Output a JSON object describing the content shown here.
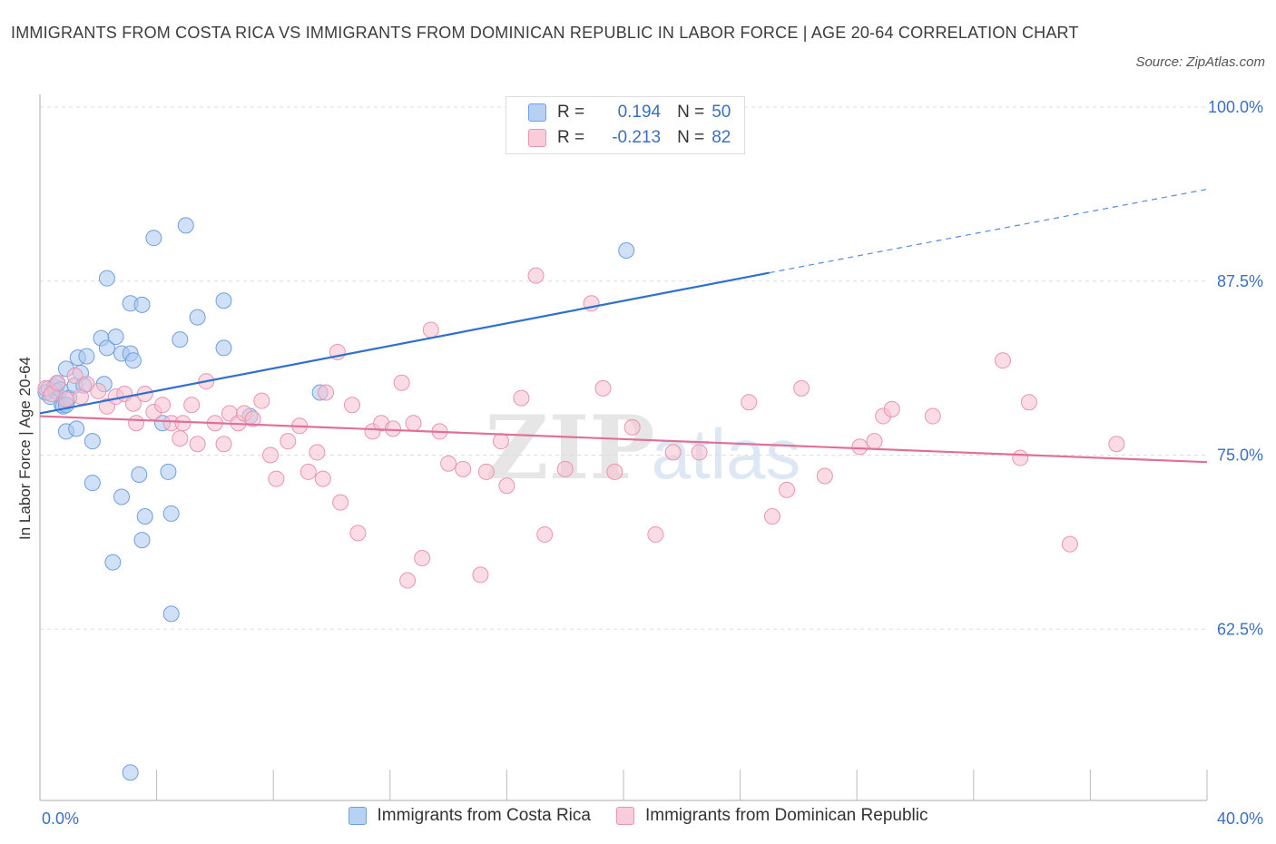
{
  "title": "IMMIGRANTS FROM COSTA RICA VS IMMIGRANTS FROM DOMINICAN REPUBLIC IN LABOR FORCE | AGE 20-64 CORRELATION CHART",
  "source": "Source: ZipAtlas.com",
  "watermark": {
    "zip": "ZIP",
    "atlas": "atlas"
  },
  "legend": {
    "rows": [
      {
        "r_label": "R =",
        "r_value": "0.194",
        "n_label": "N =",
        "n_value": "50"
      },
      {
        "r_label": "R =",
        "r_value": "-0.213",
        "n_label": "N =",
        "n_value": "82"
      }
    ]
  },
  "colors": {
    "blue_fill": "#a9c8f0",
    "blue_stroke": "#6f9fde",
    "blue_line": "#2f6fcf",
    "pink_fill": "#f7c0d0",
    "pink_stroke": "#e895b0",
    "pink_line": "#e0709a",
    "axis_text": "#3a6fc5",
    "grid": "#dddddd"
  },
  "chart_data": {
    "type": "scatter",
    "title": "IMMIGRANTS FROM COSTA RICA VS IMMIGRANTS FROM DOMINICAN REPUBLIC IN LABOR FORCE | AGE 20-64 CORRELATION CHART",
    "xlabel": "",
    "ylabel": "In Labor Force | Age 20-64",
    "xlim": [
      0,
      40
    ],
    "ylim": [
      50,
      100
    ],
    "x_tick_labels": [
      "0.0%",
      "40.0%"
    ],
    "y_ticks": [
      62.5,
      75.0,
      87.5,
      100.0
    ],
    "y_tick_labels": [
      "62.5%",
      "75.0%",
      "87.5%",
      "100.0%"
    ],
    "grid": true,
    "legend_position": "top-center",
    "series": [
      {
        "name": "Immigrants from Costa Rica",
        "r": 0.194,
        "n": 50,
        "trend": {
          "x": [
            0,
            25
          ],
          "y": [
            78.0,
            88.1
          ],
          "dashed_to": [
            40,
            94.1
          ]
        },
        "points": [
          [
            0.2,
            79.5
          ],
          [
            0.3,
            79.8
          ],
          [
            0.35,
            79.2
          ],
          [
            0.5,
            79.9
          ],
          [
            0.55,
            79.6
          ],
          [
            0.6,
            80.1
          ],
          [
            0.7,
            79.7
          ],
          [
            0.75,
            78.6
          ],
          [
            0.8,
            78.5
          ],
          [
            0.9,
            76.7
          ],
          [
            0.9,
            81.2
          ],
          [
            1.0,
            79.1
          ],
          [
            1.2,
            80.0
          ],
          [
            1.25,
            76.9
          ],
          [
            1.3,
            82.0
          ],
          [
            1.4,
            80.9
          ],
          [
            1.5,
            80.0
          ],
          [
            1.6,
            82.1
          ],
          [
            1.8,
            76.0
          ],
          [
            1.8,
            73.0
          ],
          [
            2.1,
            83.4
          ],
          [
            2.2,
            80.1
          ],
          [
            2.3,
            82.7
          ],
          [
            2.3,
            87.7
          ],
          [
            2.5,
            67.3
          ],
          [
            2.6,
            83.5
          ],
          [
            2.8,
            72.0
          ],
          [
            2.8,
            82.3
          ],
          [
            3.1,
            82.3
          ],
          [
            3.1,
            85.9
          ],
          [
            3.2,
            81.8
          ],
          [
            3.4,
            73.6
          ],
          [
            3.5,
            68.9
          ],
          [
            3.5,
            85.8
          ],
          [
            3.6,
            70.6
          ],
          [
            3.9,
            90.6
          ],
          [
            4.2,
            77.3
          ],
          [
            4.4,
            73.8
          ],
          [
            4.5,
            70.8
          ],
          [
            4.5,
            63.6
          ],
          [
            4.8,
            83.3
          ],
          [
            5.0,
            91.5
          ],
          [
            5.4,
            84.9
          ],
          [
            6.3,
            86.1
          ],
          [
            6.3,
            82.7
          ],
          [
            7.2,
            77.8
          ],
          [
            9.6,
            79.5
          ],
          [
            20.1,
            89.7
          ],
          [
            3.1,
            52.2
          ],
          [
            0.9,
            78.6
          ]
        ]
      },
      {
        "name": "Immigrants from Dominican Republic",
        "r": -0.213,
        "n": 82,
        "trend": {
          "x": [
            0,
            40
          ],
          "y": [
            77.8,
            74.5
          ]
        },
        "points": [
          [
            0.2,
            79.8
          ],
          [
            0.4,
            79.4
          ],
          [
            0.6,
            80.2
          ],
          [
            0.9,
            79.0
          ],
          [
            1.2,
            80.7
          ],
          [
            1.4,
            79.2
          ],
          [
            1.6,
            80.1
          ],
          [
            2.0,
            79.6
          ],
          [
            2.3,
            78.5
          ],
          [
            2.6,
            79.2
          ],
          [
            2.9,
            79.4
          ],
          [
            3.2,
            78.7
          ],
          [
            3.3,
            77.3
          ],
          [
            3.6,
            79.4
          ],
          [
            3.9,
            78.1
          ],
          [
            4.2,
            78.6
          ],
          [
            4.5,
            77.3
          ],
          [
            4.8,
            76.2
          ],
          [
            4.9,
            77.3
          ],
          [
            5.2,
            78.6
          ],
          [
            5.4,
            75.8
          ],
          [
            5.7,
            80.3
          ],
          [
            6.0,
            77.3
          ],
          [
            6.3,
            75.8
          ],
          [
            6.5,
            78.0
          ],
          [
            6.8,
            77.3
          ],
          [
            7.0,
            78.0
          ],
          [
            7.3,
            77.6
          ],
          [
            7.6,
            78.9
          ],
          [
            7.9,
            75.0
          ],
          [
            8.1,
            73.3
          ],
          [
            8.5,
            76.0
          ],
          [
            8.9,
            77.1
          ],
          [
            9.2,
            73.8
          ],
          [
            9.5,
            75.2
          ],
          [
            9.7,
            73.3
          ],
          [
            9.8,
            79.5
          ],
          [
            10.2,
            82.4
          ],
          [
            10.3,
            71.6
          ],
          [
            10.7,
            78.6
          ],
          [
            10.9,
            69.4
          ],
          [
            11.4,
            76.7
          ],
          [
            11.7,
            77.3
          ],
          [
            12.1,
            76.9
          ],
          [
            12.4,
            80.2
          ],
          [
            12.6,
            66.0
          ],
          [
            12.8,
            77.3
          ],
          [
            13.1,
            67.6
          ],
          [
            13.4,
            84.0
          ],
          [
            13.7,
            76.7
          ],
          [
            14.0,
            74.4
          ],
          [
            14.5,
            74.0
          ],
          [
            15.1,
            66.4
          ],
          [
            15.3,
            73.8
          ],
          [
            15.8,
            76.0
          ],
          [
            16.0,
            72.8
          ],
          [
            16.5,
            79.1
          ],
          [
            17.0,
            87.9
          ],
          [
            17.3,
            69.3
          ],
          [
            18.0,
            74.0
          ],
          [
            18.9,
            85.9
          ],
          [
            19.3,
            79.8
          ],
          [
            19.7,
            73.8
          ],
          [
            20.3,
            77.0
          ],
          [
            21.1,
            69.3
          ],
          [
            21.7,
            75.2
          ],
          [
            22.6,
            75.2
          ],
          [
            24.3,
            78.8
          ],
          [
            25.1,
            70.6
          ],
          [
            25.6,
            72.5
          ],
          [
            26.1,
            79.8
          ],
          [
            26.9,
            73.5
          ],
          [
            28.1,
            75.6
          ],
          [
            28.6,
            76.0
          ],
          [
            28.9,
            77.8
          ],
          [
            29.2,
            78.3
          ],
          [
            30.6,
            77.8
          ],
          [
            33.0,
            81.8
          ],
          [
            33.6,
            74.8
          ],
          [
            33.9,
            78.8
          ],
          [
            35.3,
            68.6
          ],
          [
            36.9,
            75.8
          ]
        ]
      }
    ]
  }
}
